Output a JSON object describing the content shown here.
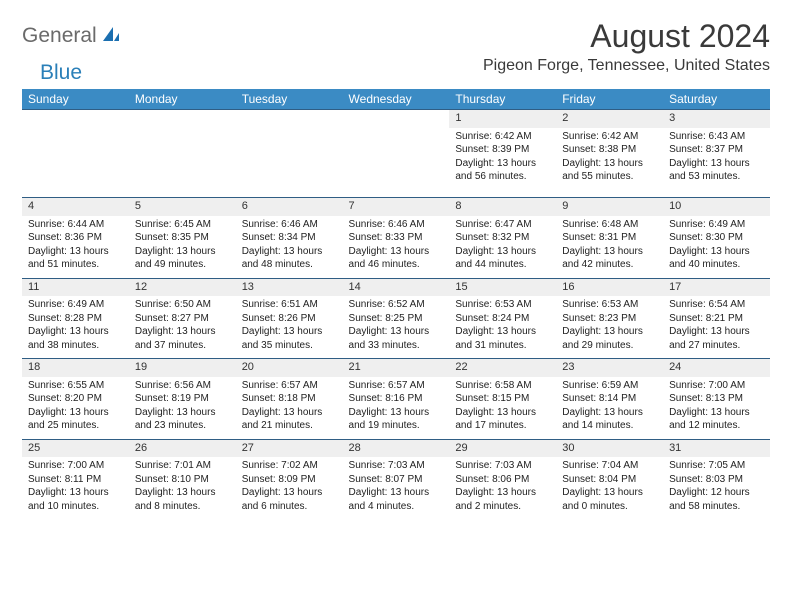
{
  "logo": {
    "part1": "General",
    "part2": "Blue"
  },
  "title": "August 2024",
  "location": "Pigeon Forge, Tennessee, United States",
  "colors": {
    "header_bg": "#3b8bc4",
    "header_text": "#ffffff",
    "daynum_bg": "#efefef",
    "rule": "#2f5d84",
    "logo_gray": "#6a6a6a",
    "logo_blue": "#2a7fb8"
  },
  "day_names": [
    "Sunday",
    "Monday",
    "Tuesday",
    "Wednesday",
    "Thursday",
    "Friday",
    "Saturday"
  ],
  "weeks": [
    {
      "nums": [
        "",
        "",
        "",
        "",
        "1",
        "2",
        "3"
      ],
      "cells": [
        "",
        "",
        "",
        "",
        "Sunrise: 6:42 AM\nSunset: 8:39 PM\nDaylight: 13 hours and 56 minutes.",
        "Sunrise: 6:42 AM\nSunset: 8:38 PM\nDaylight: 13 hours and 55 minutes.",
        "Sunrise: 6:43 AM\nSunset: 8:37 PM\nDaylight: 13 hours and 53 minutes."
      ]
    },
    {
      "nums": [
        "4",
        "5",
        "6",
        "7",
        "8",
        "9",
        "10"
      ],
      "cells": [
        "Sunrise: 6:44 AM\nSunset: 8:36 PM\nDaylight: 13 hours and 51 minutes.",
        "Sunrise: 6:45 AM\nSunset: 8:35 PM\nDaylight: 13 hours and 49 minutes.",
        "Sunrise: 6:46 AM\nSunset: 8:34 PM\nDaylight: 13 hours and 48 minutes.",
        "Sunrise: 6:46 AM\nSunset: 8:33 PM\nDaylight: 13 hours and 46 minutes.",
        "Sunrise: 6:47 AM\nSunset: 8:32 PM\nDaylight: 13 hours and 44 minutes.",
        "Sunrise: 6:48 AM\nSunset: 8:31 PM\nDaylight: 13 hours and 42 minutes.",
        "Sunrise: 6:49 AM\nSunset: 8:30 PM\nDaylight: 13 hours and 40 minutes."
      ]
    },
    {
      "nums": [
        "11",
        "12",
        "13",
        "14",
        "15",
        "16",
        "17"
      ],
      "cells": [
        "Sunrise: 6:49 AM\nSunset: 8:28 PM\nDaylight: 13 hours and 38 minutes.",
        "Sunrise: 6:50 AM\nSunset: 8:27 PM\nDaylight: 13 hours and 37 minutes.",
        "Sunrise: 6:51 AM\nSunset: 8:26 PM\nDaylight: 13 hours and 35 minutes.",
        "Sunrise: 6:52 AM\nSunset: 8:25 PM\nDaylight: 13 hours and 33 minutes.",
        "Sunrise: 6:53 AM\nSunset: 8:24 PM\nDaylight: 13 hours and 31 minutes.",
        "Sunrise: 6:53 AM\nSunset: 8:23 PM\nDaylight: 13 hours and 29 minutes.",
        "Sunrise: 6:54 AM\nSunset: 8:21 PM\nDaylight: 13 hours and 27 minutes."
      ]
    },
    {
      "nums": [
        "18",
        "19",
        "20",
        "21",
        "22",
        "23",
        "24"
      ],
      "cells": [
        "Sunrise: 6:55 AM\nSunset: 8:20 PM\nDaylight: 13 hours and 25 minutes.",
        "Sunrise: 6:56 AM\nSunset: 8:19 PM\nDaylight: 13 hours and 23 minutes.",
        "Sunrise: 6:57 AM\nSunset: 8:18 PM\nDaylight: 13 hours and 21 minutes.",
        "Sunrise: 6:57 AM\nSunset: 8:16 PM\nDaylight: 13 hours and 19 minutes.",
        "Sunrise: 6:58 AM\nSunset: 8:15 PM\nDaylight: 13 hours and 17 minutes.",
        "Sunrise: 6:59 AM\nSunset: 8:14 PM\nDaylight: 13 hours and 14 minutes.",
        "Sunrise: 7:00 AM\nSunset: 8:13 PM\nDaylight: 13 hours and 12 minutes."
      ]
    },
    {
      "nums": [
        "25",
        "26",
        "27",
        "28",
        "29",
        "30",
        "31"
      ],
      "cells": [
        "Sunrise: 7:00 AM\nSunset: 8:11 PM\nDaylight: 13 hours and 10 minutes.",
        "Sunrise: 7:01 AM\nSunset: 8:10 PM\nDaylight: 13 hours and 8 minutes.",
        "Sunrise: 7:02 AM\nSunset: 8:09 PM\nDaylight: 13 hours and 6 minutes.",
        "Sunrise: 7:03 AM\nSunset: 8:07 PM\nDaylight: 13 hours and 4 minutes.",
        "Sunrise: 7:03 AM\nSunset: 8:06 PM\nDaylight: 13 hours and 2 minutes.",
        "Sunrise: 7:04 AM\nSunset: 8:04 PM\nDaylight: 13 hours and 0 minutes.",
        "Sunrise: 7:05 AM\nSunset: 8:03 PM\nDaylight: 12 hours and 58 minutes."
      ]
    }
  ]
}
